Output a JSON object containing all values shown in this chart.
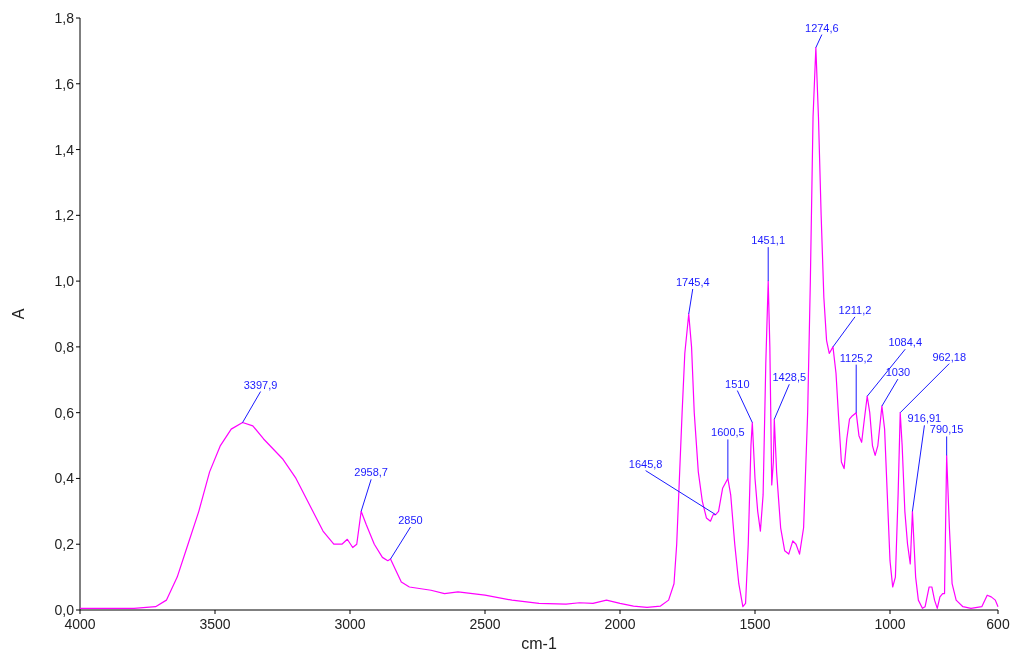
{
  "chart_data": {
    "type": "line",
    "xlabel": "cm-1",
    "ylabel": "A",
    "xlim": [
      4000,
      600
    ],
    "ylim": [
      0,
      1.8
    ],
    "xticks": [
      4000,
      3500,
      3000,
      2500,
      2000,
      1500,
      1000,
      600
    ],
    "yticks": [
      {
        "value": 0,
        "label": "0,0"
      },
      {
        "value": 0.2,
        "label": "0,2"
      },
      {
        "value": 0.4,
        "label": "0,4"
      },
      {
        "value": 0.6,
        "label": "0,6"
      },
      {
        "value": 0.8,
        "label": "0,8"
      },
      {
        "value": 1.0,
        "label": "1,0"
      },
      {
        "value": 1.2,
        "label": "1,2"
      },
      {
        "value": 1.4,
        "label": "1,4"
      },
      {
        "value": 1.6,
        "label": "1,6"
      },
      {
        "value": 1.8,
        "label": "1,8"
      }
    ],
    "grid": false,
    "marker": "none",
    "line_style": "solid",
    "series": [
      {
        "color": "#ff00ff",
        "x": [
          4000,
          3800,
          3720,
          3680,
          3640,
          3600,
          3560,
          3520,
          3480,
          3440,
          3397.9,
          3360,
          3320,
          3250,
          3200,
          3150,
          3100,
          3060,
          3030,
          3010,
          2990,
          2975,
          2958.7,
          2940,
          2910,
          2880,
          2860,
          2850,
          2830,
          2810,
          2780,
          2700,
          2650,
          2600,
          2500,
          2400,
          2300,
          2200,
          2150,
          2100,
          2050,
          2000,
          1950,
          1900,
          1850,
          1820,
          1800,
          1790,
          1780,
          1770,
          1760,
          1745.4,
          1735,
          1725,
          1710,
          1695,
          1680,
          1665,
          1655,
          1645.8,
          1635,
          1620,
          1600.5,
          1590,
          1575,
          1560,
          1545,
          1535,
          1525,
          1515,
          1510,
          1500,
          1490,
          1480,
          1470,
          1460,
          1451.1,
          1445,
          1438,
          1432,
          1428.5,
          1420,
          1405,
          1390,
          1375,
          1360,
          1348,
          1335,
          1320,
          1305,
          1295,
          1285,
          1274.6,
          1265,
          1255,
          1245,
          1235,
          1225,
          1211.2,
          1200,
          1190,
          1180,
          1170,
          1160,
          1150,
          1140,
          1125.2,
          1115,
          1105,
          1095,
          1084.4,
          1075,
          1065,
          1055,
          1045,
          1030,
          1020,
          1010,
          1000,
          990,
          980,
          970,
          962.18,
          955,
          945,
          935,
          925,
          916.91,
          905,
          895,
          880,
          870,
          855,
          845,
          835,
          825,
          815,
          805,
          798,
          790.15,
          780,
          770,
          755,
          730,
          700,
          660,
          640,
          625,
          610,
          600
        ],
        "values": [
          0.005,
          0.005,
          0.01,
          0.03,
          0.1,
          0.2,
          0.3,
          0.42,
          0.5,
          0.55,
          0.57,
          0.56,
          0.52,
          0.46,
          0.4,
          0.32,
          0.24,
          0.2,
          0.2,
          0.215,
          0.19,
          0.2,
          0.3,
          0.26,
          0.2,
          0.16,
          0.15,
          0.155,
          0.12,
          0.085,
          0.07,
          0.06,
          0.05,
          0.055,
          0.045,
          0.03,
          0.02,
          0.018,
          0.022,
          0.02,
          0.03,
          0.02,
          0.012,
          0.008,
          0.012,
          0.03,
          0.08,
          0.2,
          0.4,
          0.6,
          0.78,
          0.9,
          0.8,
          0.6,
          0.42,
          0.33,
          0.28,
          0.27,
          0.29,
          0.29,
          0.3,
          0.37,
          0.4,
          0.35,
          0.2,
          0.08,
          0.01,
          0.02,
          0.2,
          0.5,
          0.57,
          0.4,
          0.3,
          0.24,
          0.35,
          0.75,
          1.0,
          0.8,
          0.38,
          0.45,
          0.58,
          0.42,
          0.25,
          0.18,
          0.17,
          0.21,
          0.2,
          0.17,
          0.25,
          0.6,
          1.0,
          1.5,
          1.71,
          1.5,
          1.2,
          0.95,
          0.82,
          0.78,
          0.8,
          0.72,
          0.58,
          0.45,
          0.43,
          0.52,
          0.58,
          0.59,
          0.6,
          0.53,
          0.51,
          0.58,
          0.65,
          0.6,
          0.5,
          0.47,
          0.5,
          0.62,
          0.55,
          0.35,
          0.15,
          0.07,
          0.1,
          0.35,
          0.6,
          0.5,
          0.3,
          0.2,
          0.14,
          0.3,
          0.1,
          0.03,
          0.005,
          0.01,
          0.07,
          0.07,
          0.03,
          0.005,
          0.04,
          0.05,
          0.05,
          0.47,
          0.25,
          0.08,
          0.03,
          0.01,
          0.005,
          0.01,
          0.045,
          0.04,
          0.03,
          0.01
        ]
      }
    ],
    "annotations": [
      {
        "text": "3397,9",
        "x": 3397.9,
        "y": 0.57
      },
      {
        "text": "2958,7",
        "x": 2958.7,
        "y": 0.3
      },
      {
        "text": "2850",
        "x": 2850,
        "y": 0.155
      },
      {
        "text": "1745,4",
        "x": 1745.4,
        "y": 0.9
      },
      {
        "text": "1645,8",
        "x": 1645.8,
        "y": 0.29
      },
      {
        "text": "1600,5",
        "x": 1600.5,
        "y": 0.4
      },
      {
        "text": "1510",
        "x": 1510,
        "y": 0.57
      },
      {
        "text": "1451,1",
        "x": 1451.1,
        "y": 1.0
      },
      {
        "text": "1428,5",
        "x": 1428.5,
        "y": 0.58
      },
      {
        "text": "1274,6",
        "x": 1274.6,
        "y": 1.71
      },
      {
        "text": "1211,2",
        "x": 1211.2,
        "y": 0.8
      },
      {
        "text": "1125,2",
        "x": 1125.2,
        "y": 0.6
      },
      {
        "text": "1084,4",
        "x": 1084.4,
        "y": 0.65
      },
      {
        "text": "1030",
        "x": 1030,
        "y": 0.62
      },
      {
        "text": "962,18",
        "x": 962.18,
        "y": 0.6
      },
      {
        "text": "916,91",
        "x": 916.91,
        "y": 0.3
      },
      {
        "text": "790,15",
        "x": 790.15,
        "y": 0.47
      }
    ]
  }
}
